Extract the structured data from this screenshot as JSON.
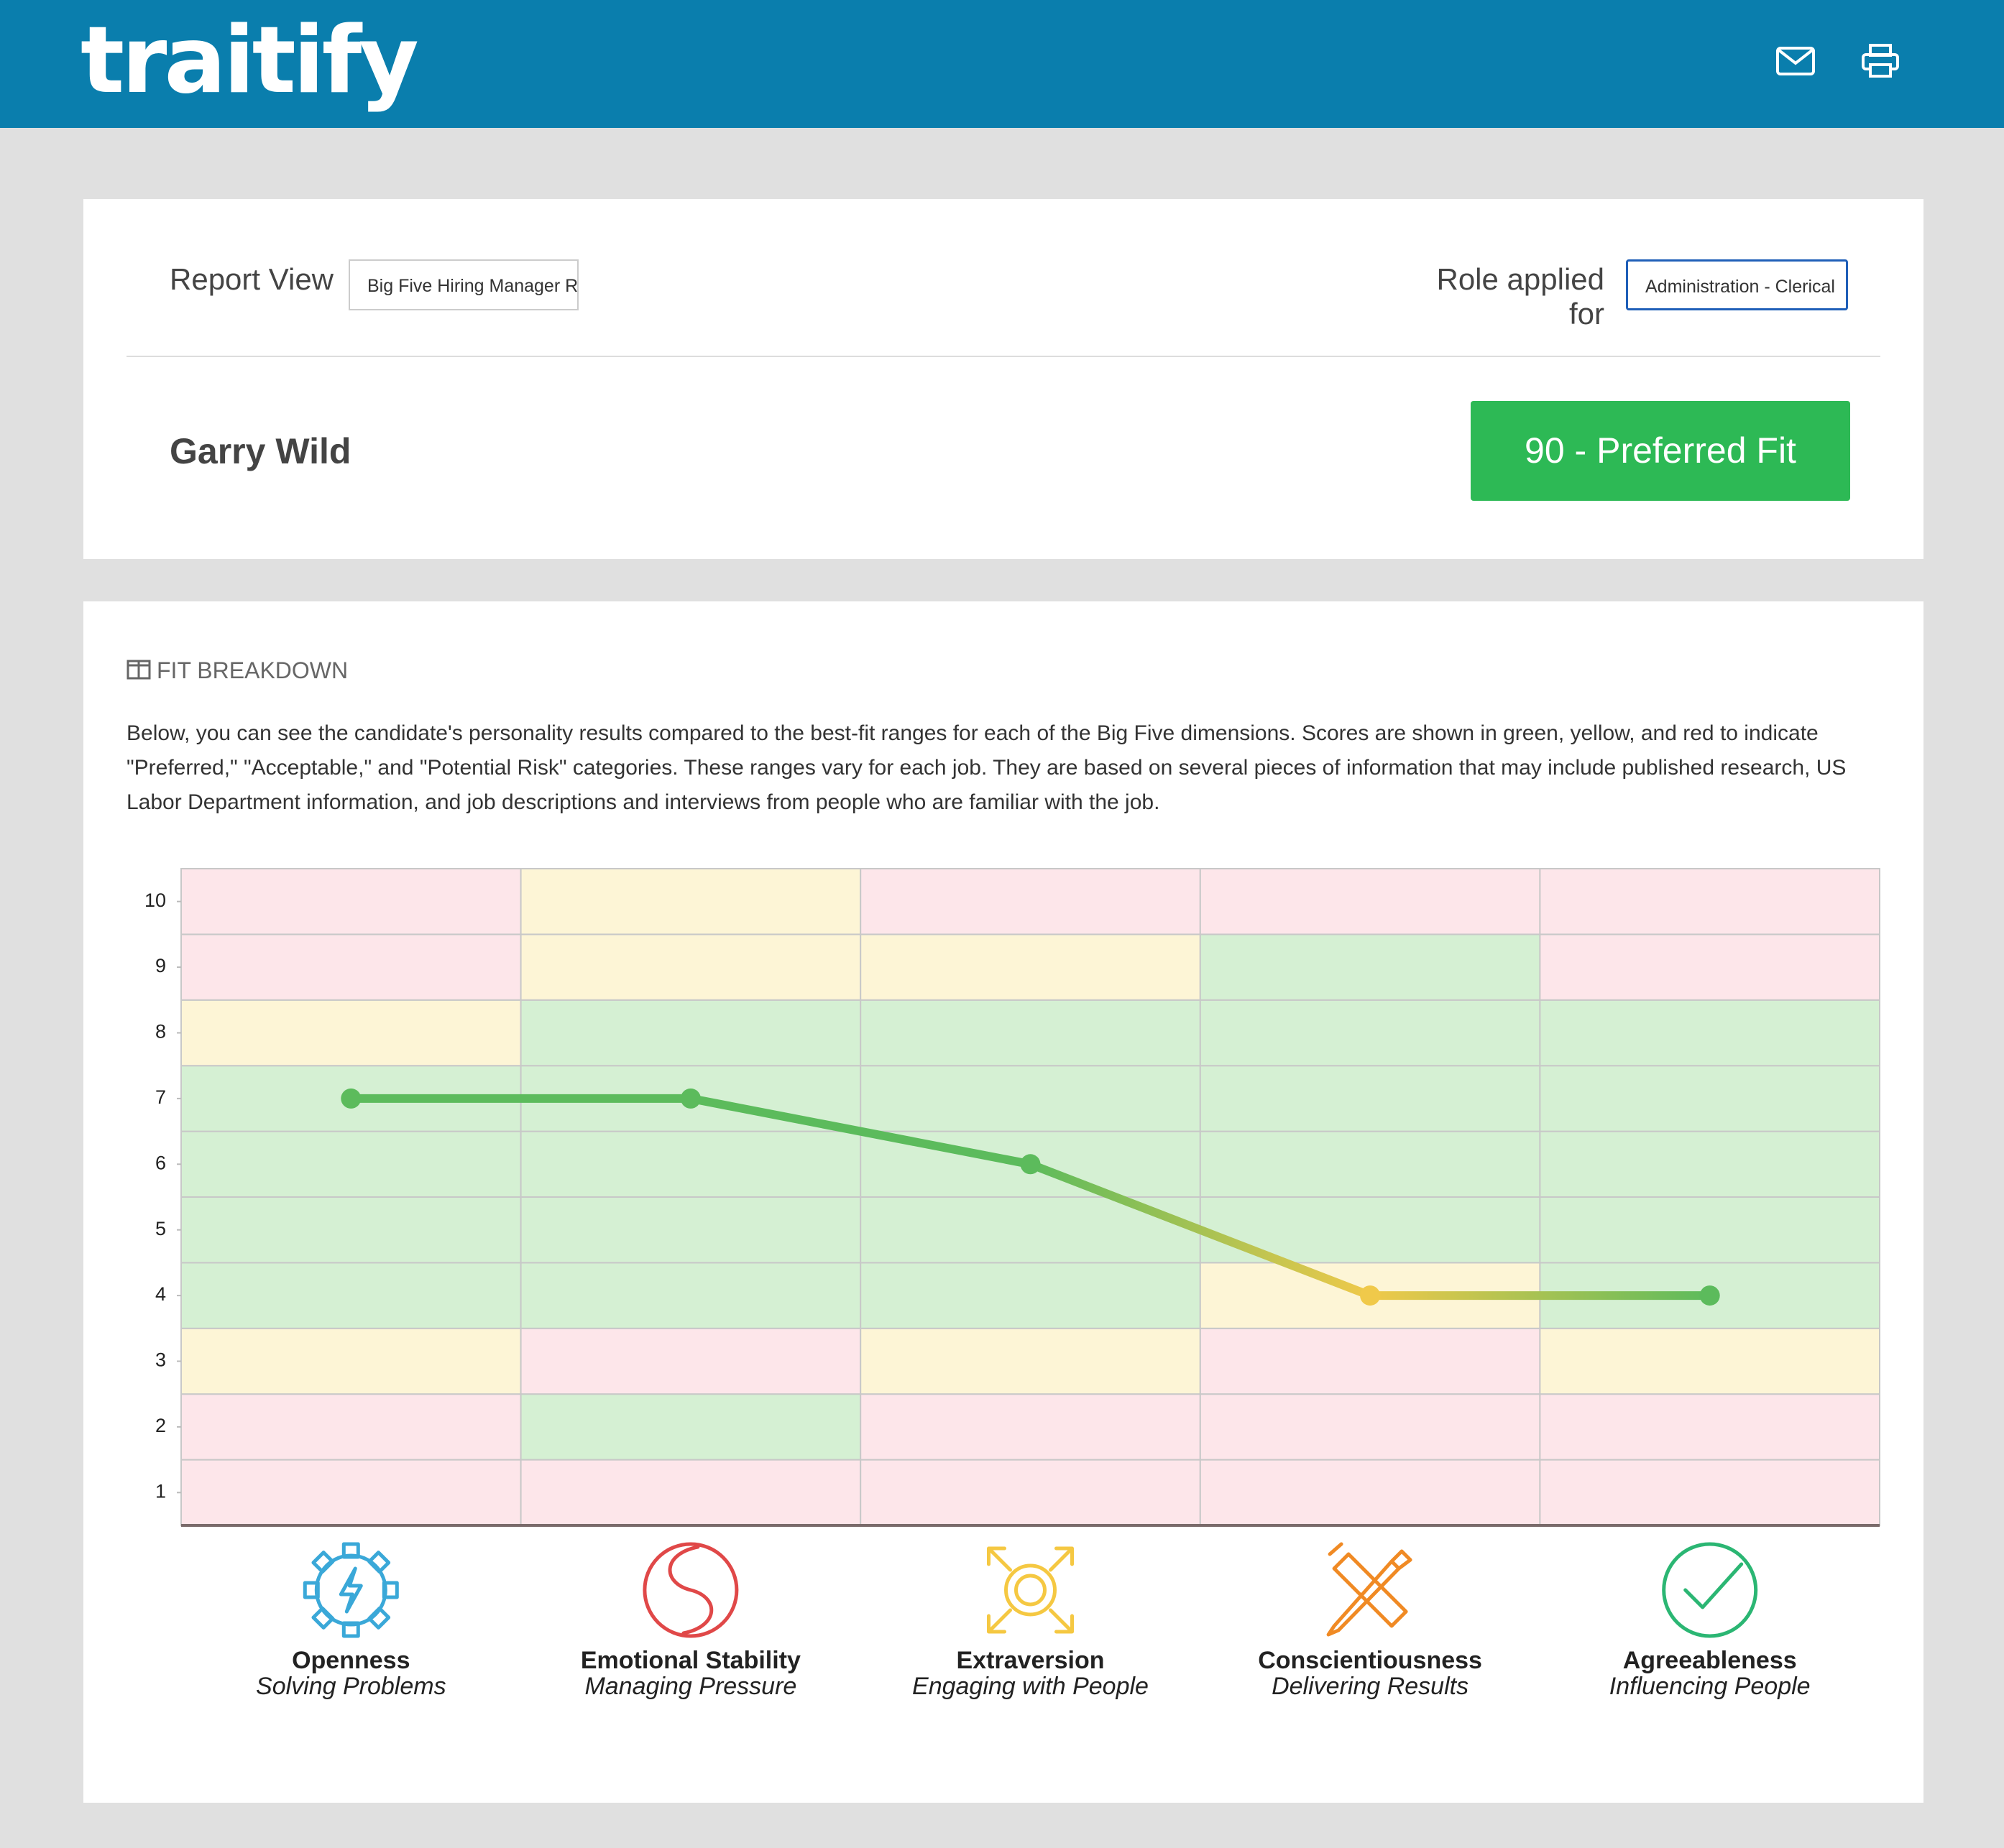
{
  "header": {
    "logo": "traitify"
  },
  "controls": {
    "report_view_label": "Report View",
    "report_view_value": "Big Five Hiring Manager R",
    "role_label": "Role applied for",
    "role_value": "Administration - Clerical"
  },
  "candidate": {
    "name": "Garry Wild",
    "fit": "90 - Preferred Fit"
  },
  "fit_breakdown": {
    "heading": "FIT BREAKDOWN",
    "description": "Below, you can see the candidate's personality results compared to the best-fit ranges for each of the Big Five dimensions. Scores are shown in green, yellow, and red to indicate \"Preferred,\" \"Acceptable,\" and \"Potential Risk\" categories. These ranges vary for each job. They are based on several pieces of information that may include published research, US Labor Department information, and job descriptions and interviews from people who are familiar with the job."
  },
  "chart_data": {
    "type": "line",
    "categories": [
      "Openness",
      "Emotional Stability",
      "Extraversion",
      "Conscientiousness",
      "Agreeableness"
    ],
    "subtitles": [
      "Solving Problems",
      "Managing Pressure",
      "Engaging with People",
      "Delivering Results",
      "Influencing People"
    ],
    "values": [
      7,
      7,
      6,
      4,
      4
    ],
    "marker_colors": [
      "#5cbb5c",
      "#5cbb5c",
      "#5cbb5c",
      "#f0c94a",
      "#5cbb5c"
    ],
    "icon_colors": [
      "#3aa8d8",
      "#e04848",
      "#f5c842",
      "#f08a24",
      "#2bb673"
    ],
    "ylim": [
      0.5,
      10.5
    ],
    "yticks": [
      1,
      2,
      3,
      4,
      5,
      6,
      7,
      8,
      9,
      10
    ],
    "zones": [
      [
        "#fde6ea",
        "#fde6ea",
        "#fdf5d6",
        "#d5f0d3",
        "#d5f0d3",
        "#d5f0d3",
        "#d5f0d3",
        "#fdf5d6",
        "#fde6ea",
        "#fde6ea"
      ],
      [
        "#fde6ea",
        "#d5f0d3",
        "#fde6ea",
        "#d5f0d3",
        "#d5f0d3",
        "#d5f0d3",
        "#d5f0d3",
        "#d5f0d3",
        "#fdf5d6",
        "#fdf5d6"
      ],
      [
        "#fde6ea",
        "#fde6ea",
        "#fdf5d6",
        "#d5f0d3",
        "#d5f0d3",
        "#d5f0d3",
        "#d5f0d3",
        "#d5f0d3",
        "#fdf5d6",
        "#fde6ea"
      ],
      [
        "#fde6ea",
        "#fde6ea",
        "#fde6ea",
        "#fdf5d6",
        "#d5f0d3",
        "#d5f0d3",
        "#d5f0d3",
        "#d5f0d3",
        "#d5f0d3",
        "#fde6ea"
      ],
      [
        "#fde6ea",
        "#fde6ea",
        "#fdf5d6",
        "#d5f0d3",
        "#d5f0d3",
        "#d5f0d3",
        "#d5f0d3",
        "#d5f0d3",
        "#fde6ea",
        "#fde6ea"
      ]
    ]
  }
}
